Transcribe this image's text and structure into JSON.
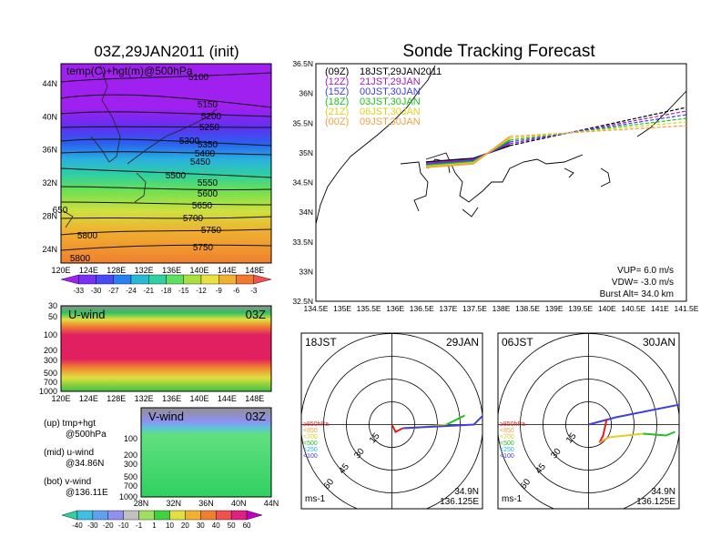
{
  "titles": {
    "left": "03Z,29JAN2011 (init)",
    "right": "Sonde Tracking Forecast"
  },
  "height_map": {
    "label": "temp(C)+hgt(m)@500hPa",
    "x_ticks": [
      "120E",
      "124E",
      "128E",
      "132E",
      "136E",
      "140E",
      "144E",
      "148E"
    ],
    "y_ticks": [
      "24N",
      "28N",
      "32N",
      "36N",
      "40N",
      "44N"
    ],
    "contour_labels": [
      "5100",
      "5150",
      "5200",
      "5250",
      "5300",
      "5350",
      "5400",
      "5450",
      "5500",
      "5550",
      "5600",
      "5650",
      "5700",
      "5750",
      "5800",
      "5750",
      "5800",
      "650"
    ],
    "colorbar_ticks": [
      "-33",
      "-30",
      "-27",
      "-24",
      "-21",
      "-18",
      "-15",
      "-12",
      "-9",
      "-6",
      "-3"
    ],
    "colorbar_colors": [
      "#a020f0",
      "#7a30f4",
      "#4a4af4",
      "#2a80f0",
      "#2ab8d8",
      "#30d0a0",
      "#60e060",
      "#a8e040",
      "#e8e040",
      "#f0b030",
      "#f07830",
      "#f05050"
    ]
  },
  "uwind": {
    "label": "U-wind",
    "time": "03Z",
    "y_ticks": [
      "30",
      "50",
      "100",
      "200",
      "300",
      "500",
      "700",
      "1000"
    ],
    "x_ticks": [
      "120E",
      "124E",
      "128E",
      "132E",
      "136E",
      "140E",
      "144E",
      "148E"
    ]
  },
  "vwind": {
    "label": "V-wind",
    "time": "03Z",
    "y_ticks": [
      "100",
      "200",
      "300",
      "500",
      "700",
      "1000"
    ],
    "x_ticks": [
      "28N",
      "32N",
      "36N",
      "40N",
      "44N"
    ],
    "colorbar_ticks": [
      "-40",
      "-30",
      "-20",
      "-10",
      "-1",
      "1",
      "10",
      "20",
      "30",
      "40",
      "50",
      "60"
    ],
    "colorbar_colors": [
      "#30d0a0",
      "#40c0e0",
      "#60a0f0",
      "#9090f0",
      "#c0c0c0",
      "#a0e060",
      "#40d040",
      "#e0e040",
      "#f0b030",
      "#f08030",
      "#f05050",
      "#e02080",
      "#c000c0"
    ]
  },
  "legend_text": {
    "up1": "(up) tmp+hgt",
    "up2": "@500hPa",
    "mid1": "(mid) u-wind",
    "mid2": "@34.86N",
    "bot1": "(bot) v-wind",
    "bot2": "@136.11E"
  },
  "track_map": {
    "x_ticks": [
      "134.5E",
      "135E",
      "135.5E",
      "136E",
      "136.5E",
      "137E",
      "137.5E",
      "138E",
      "138.5E",
      "139E",
      "139.5E",
      "140E",
      "140.5E",
      "141E",
      "141.5E"
    ],
    "y_ticks": [
      "32.5N",
      "33N",
      "33.5N",
      "34N",
      "34.5N",
      "35N",
      "35.5N",
      "36N",
      "36.5N"
    ],
    "launches": [
      {
        "utc": "(09Z)",
        "jst": "18JST,29JAN2011",
        "color": "#000000"
      },
      {
        "utc": "(12Z)",
        "jst": "21JST,29JAN",
        "color": "#a020c0"
      },
      {
        "utc": "(15Z)",
        "jst": "00JST,30JAN",
        "color": "#4040e0"
      },
      {
        "utc": "(18Z)",
        "jst": "03JST,30JAN",
        "color": "#20c020"
      },
      {
        "utc": "(21Z)",
        "jst": "06JST,30JAN",
        "color": "#e0d020"
      },
      {
        "utc": "(00Z)",
        "jst": "09JST,30JAN",
        "color": "#f0a040"
      }
    ],
    "vup": "VUP=  6.0  m/s",
    "vdw": "VDW= -3.0  m/s",
    "burst": "Burst Alt= 34.0  km"
  },
  "polar_left": {
    "time": "18JST",
    "date": "29JAN",
    "rings": [
      "15",
      "30",
      "45",
      "60"
    ],
    "lat": "34.9N",
    "lon": "136.125E",
    "unit": "ms-1",
    "levels": [
      {
        "text": "≥850hPa",
        "color": "#e02020"
      },
      {
        "text": "<850",
        "color": "#f0a040"
      },
      {
        "text": "<700",
        "color": "#e0d020"
      },
      {
        "text": "<500",
        "color": "#20c020"
      },
      {
        "text": "<250",
        "color": "#20b0e0"
      },
      {
        "text": "<100",
        "color": "#4040e0"
      }
    ]
  },
  "polar_right": {
    "time": "06JST",
    "date": "30JAN",
    "rings": [
      "15",
      "30",
      "45",
      "60"
    ],
    "lat": "34.9N",
    "lon": "136.125E",
    "unit": "ms-1",
    "levels": [
      {
        "text": "≥850hPa",
        "color": "#e02020"
      },
      {
        "text": "<850",
        "color": "#f0a040"
      },
      {
        "text": "<700",
        "color": "#e0d020"
      },
      {
        "text": "<500",
        "color": "#20c020"
      },
      {
        "text": "<250",
        "color": "#20b0e0"
      },
      {
        "text": "<100",
        "color": "#4040e0"
      }
    ]
  }
}
